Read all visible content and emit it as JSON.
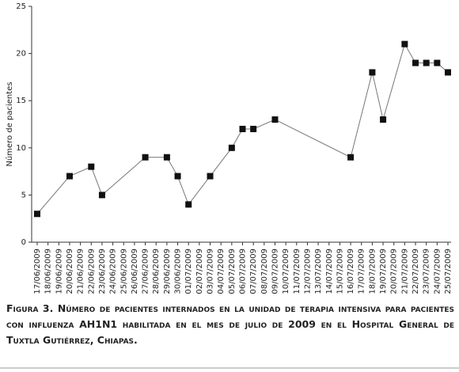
{
  "chart_data": {
    "type": "line",
    "y_label": "Número de pacientes",
    "caption": "Figura 3. Número de pacientes internados en la unidad de terapia intensiva para pacientes con influenza AH1N1 habilitada en el mes de julio de 2009 en el Hospital General de Tuxtla Gutiérrez, Chiapas.",
    "categories": [
      "17/06/2009",
      "18/06/2009",
      "19/06/2009",
      "20/06/2009",
      "21/06/2009",
      "22/06/2009",
      "23/06/2009",
      "24/06/2009",
      "25/06/2009",
      "26/06/2009",
      "27/06/2009",
      "28/06/2009",
      "29/06/2009",
      "30/06/2009",
      "01/07/2009",
      "02/07/2009",
      "03/07/2009",
      "04/07/2009",
      "05/07/2009",
      "06/07/2009",
      "07/07/2009",
      "08/07/2009",
      "09/07/2009",
      "10/07/2009",
      "11/07/2009",
      "12/07/2009",
      "13/07/2009",
      "14/07/2009",
      "15/07/2009",
      "16/07/2009",
      "17/07/2009",
      "18/07/2009",
      "19/07/2009",
      "20/07/2009",
      "21/07/2009",
      "22/07/2009",
      "23/07/2009",
      "24/07/2009",
      "25/07/2009"
    ],
    "series": [
      {
        "color": "#111111",
        "x": [
          "17/06/2009",
          "20/06/2009",
          "22/06/2009",
          "23/06/2009",
          "27/06/2009",
          "29/06/2009",
          "30/06/2009",
          "01/07/2009",
          "03/07/2009",
          "05/07/2009",
          "06/07/2009",
          "07/07/2009",
          "09/07/2009",
          "16/07/2009",
          "18/07/2009",
          "19/07/2009",
          "21/07/2009",
          "22/07/2009",
          "23/07/2009",
          "24/07/2009",
          "25/07/2009"
        ],
        "values": [
          3,
          7,
          8,
          5,
          9,
          9,
          7,
          4,
          7,
          10,
          12,
          12,
          13,
          9,
          18,
          13,
          21,
          19,
          19,
          19,
          18
        ]
      }
    ],
    "ylim": [
      0,
      25
    ],
    "yticks": [
      0,
      5,
      10,
      15,
      20,
      25
    ],
    "grid": false
  }
}
